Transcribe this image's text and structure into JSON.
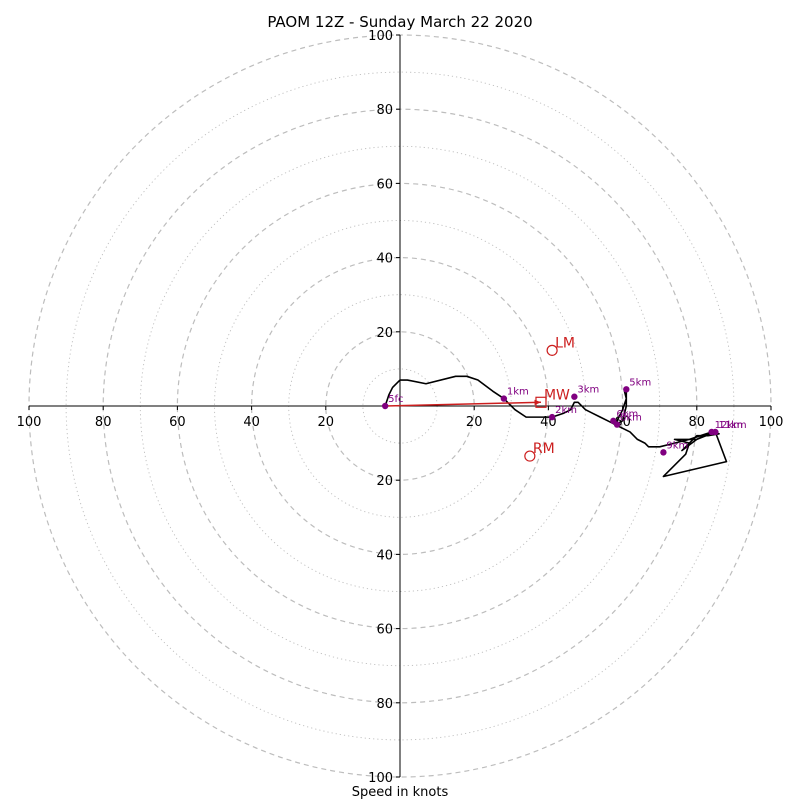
{
  "chart_data": {
    "type": "hodograph",
    "title": "PAOM 12Z - Sunday March 22 2020",
    "xlabel": "Speed in knots",
    "xlim": [
      -100,
      100
    ],
    "ylim": [
      -100,
      100
    ],
    "ring_step": 20,
    "minor_ring_step": 10,
    "x_ticks": [
      {
        "value": -100,
        "label": "100"
      },
      {
        "value": -80,
        "label": "80"
      },
      {
        "value": -60,
        "label": "60"
      },
      {
        "value": -40,
        "label": "40"
      },
      {
        "value": -20,
        "label": "20"
      },
      {
        "value": 20,
        "label": "20"
      },
      {
        "value": 40,
        "label": "40"
      },
      {
        "value": 60,
        "label": "60"
      },
      {
        "value": 80,
        "label": "80"
      },
      {
        "value": 100,
        "label": "100"
      }
    ],
    "y_ticks": [
      {
        "value": 100,
        "label": "100"
      },
      {
        "value": 80,
        "label": "80"
      },
      {
        "value": 60,
        "label": "60"
      },
      {
        "value": 40,
        "label": "40"
      },
      {
        "value": 20,
        "label": "20"
      },
      {
        "value": -20,
        "label": "20"
      },
      {
        "value": -40,
        "label": "40"
      },
      {
        "value": -60,
        "label": "60"
      },
      {
        "value": -80,
        "label": "80"
      },
      {
        "value": -100,
        "label": "100"
      }
    ],
    "hodograph_line": [
      [
        -4,
        0
      ],
      [
        -3,
        3
      ],
      [
        -2,
        5
      ],
      [
        0,
        7
      ],
      [
        2,
        7
      ],
      [
        7,
        6
      ],
      [
        15,
        8
      ],
      [
        18,
        8
      ],
      [
        21,
        7
      ],
      [
        25,
        4
      ],
      [
        28,
        2
      ],
      [
        31,
        -1
      ],
      [
        34,
        -3
      ],
      [
        38,
        -3
      ],
      [
        41,
        -3
      ],
      [
        44,
        -2
      ],
      [
        46,
        -1
      ],
      [
        47,
        1
      ],
      [
        48,
        1
      ],
      [
        50,
        -1
      ],
      [
        52,
        -2
      ],
      [
        54,
        -3
      ],
      [
        56,
        -4
      ],
      [
        58,
        -5
      ],
      [
        60,
        -4
      ],
      [
        60.5,
        -2
      ],
      [
        61,
        0
      ],
      [
        61,
        2
      ],
      [
        60.5,
        4
      ],
      [
        61,
        4.5
      ],
      [
        61,
        2
      ],
      [
        60,
        -1
      ],
      [
        58.5,
        -4
      ],
      [
        59,
        -5.5
      ],
      [
        62,
        -7
      ],
      [
        64,
        -9
      ],
      [
        66,
        -10
      ],
      [
        67,
        -11
      ],
      [
        70,
        -11
      ],
      [
        74,
        -10
      ],
      [
        78,
        -9
      ],
      [
        81,
        -8
      ],
      [
        84,
        -7
      ],
      [
        86,
        -7.5
      ],
      [
        83,
        -8
      ],
      [
        80,
        -8
      ],
      [
        76,
        -12
      ],
      [
        80,
        -9
      ],
      [
        85,
        -7
      ],
      [
        88,
        -15
      ],
      [
        71,
        -19
      ],
      [
        77,
        -13
      ],
      [
        78,
        -10
      ],
      [
        74,
        -9
      ],
      [
        80,
        -9
      ],
      [
        84,
        -7
      ]
    ],
    "height_markers": [
      {
        "label": "5fc",
        "u": -4,
        "v": 0
      },
      {
        "label": "1km",
        "u": 28,
        "v": 2
      },
      {
        "label": "2km",
        "u": 41,
        "v": -3
      },
      {
        "label": "3km",
        "u": 47,
        "v": 2.5
      },
      {
        "label": "5km",
        "u": 61,
        "v": 4.5
      },
      {
        "label": "6km",
        "u": 57.5,
        "v": -4
      },
      {
        "label": "8km",
        "u": 58.5,
        "v": -5
      },
      {
        "label": "9km",
        "u": 71,
        "v": -12.5
      },
      {
        "label": "12km",
        "u": 84,
        "v": -7
      },
      {
        "label": "11km",
        "u": 85,
        "v": -7
      }
    ],
    "storm_motion": [
      {
        "label": "LM",
        "u": 41,
        "v": 15,
        "shape": "circle"
      },
      {
        "label": "MW",
        "u": 38,
        "v": 1,
        "shape": "square"
      },
      {
        "label": "RM",
        "u": 35,
        "v": -13.5,
        "shape": "circle"
      }
    ],
    "shear_vector": {
      "from": [
        -4,
        0
      ],
      "to": [
        38,
        1
      ]
    },
    "colors": {
      "hodograph": "#000000",
      "markers": "#800080",
      "storm_motion": "#cc1f1f",
      "rings": "#bdbdbd",
      "axes": "#000000"
    }
  }
}
